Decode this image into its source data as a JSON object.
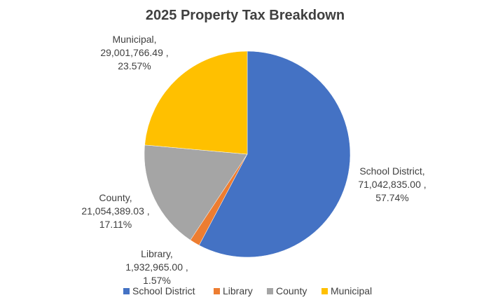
{
  "chart_data": {
    "type": "pie",
    "title": "2025 Property Tax Breakdown",
    "slices": [
      {
        "name": "School District",
        "value": 71042835.0,
        "value_label": "71,042,835.00",
        "percent_label": "57.74%",
        "color": "#4472c4"
      },
      {
        "name": "Library",
        "value": 1932965.0,
        "value_label": "1,932,965.00",
        "percent_label": "1.57%",
        "color": "#ed7d31"
      },
      {
        "name": "County",
        "value": 21054389.03,
        "value_label": "21,054,389.03",
        "percent_label": "17.11%",
        "color": "#a5a5a5"
      },
      {
        "name": "Municipal",
        "value": 29001766.49,
        "value_label": "29,001,766.49",
        "percent_label": "23.57%",
        "color": "#ffc000"
      }
    ],
    "legend_position": "bottom"
  }
}
